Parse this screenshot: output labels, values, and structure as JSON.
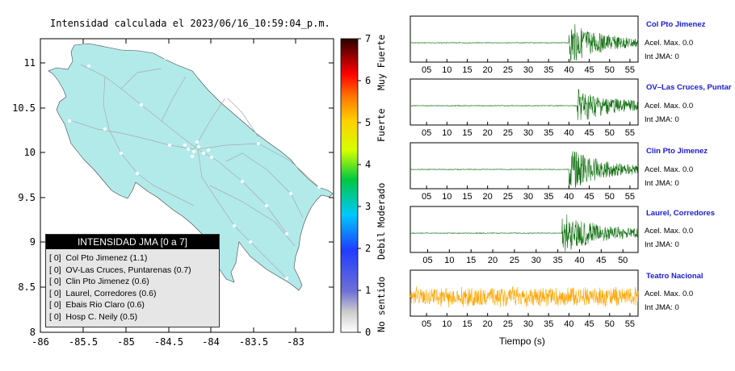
{
  "map": {
    "title": "Intensidad calculada el 2023/06/16_10:59:04_p.m.",
    "lat_ticks": [
      "11",
      "10.5",
      "10",
      "9.5",
      "9",
      "8.5",
      "8"
    ],
    "lon_ticks": [
      "-86",
      "-85.5",
      "-85",
      "-84.5",
      "-84",
      "-83.5",
      "-83"
    ],
    "land_color": "#b2eaea",
    "road_color": "#aaaaaa"
  },
  "colorbar": {
    "ticks": [
      "0",
      "1",
      "2",
      "3",
      "4",
      "5",
      "6",
      "7"
    ],
    "labels": [
      "No sentido",
      "Debil",
      "Moderado",
      "Fuerte",
      "Muy Fuerte"
    ]
  },
  "legend": {
    "title": "INTENSIDAD JMA [0 a 7]",
    "rows": [
      "[ 0]  Col Pto Jimenez (1.1)",
      "[ 0]  OV-Las Cruces, Puntarenas (0.7)",
      "[ 0]  Clin Pto Jimenez (0.6)",
      "[ 0]  Laurel, Corredores (0.6)",
      "[ 0]  Ebais Rio Claro (0.6)",
      "[ 0]  Hosp C. Neily (0.5)"
    ]
  },
  "waveforms": {
    "xlabel": "Tiempo (s)",
    "stations": [
      {
        "name": "Col Pto Jimenez",
        "acel": "Acel. Max. 0.0",
        "jma": "Int JMA: 0",
        "color": "#0f6e0f",
        "ticks": [
          "05",
          "10",
          "15",
          "20",
          "25",
          "30",
          "35",
          "40",
          "45",
          "50",
          "55"
        ],
        "onset": 40
      },
      {
        "name": "OV–Las Cruces, Puntar",
        "acel": "Acel. Max. 0.0",
        "jma": "Int JMA: 0",
        "color": "#0f6e0f",
        "ticks": [
          "05",
          "10",
          "15",
          "20",
          "25",
          "30",
          "35",
          "40",
          "45",
          "50",
          "55"
        ],
        "onset": 42
      },
      {
        "name": "Clin Pto Jimenez",
        "acel": "Acel. Max. 0.0",
        "jma": "Int JMA: 0",
        "color": "#0f6e0f",
        "ticks": [
          "05",
          "10",
          "15",
          "20",
          "25",
          "30",
          "35",
          "40",
          "45",
          "50",
          "55"
        ],
        "onset": 40
      },
      {
        "name": "Laurel, Corredores",
        "acel": "Acel. Max. 0.0",
        "jma": "Int JMA: 0",
        "color": "#0f6e0f",
        "ticks": [
          "05",
          "10",
          "15",
          "20",
          "25",
          "30",
          "35",
          "40",
          "45",
          "50"
        ],
        "onset": 36
      },
      {
        "name": "Teatro Nacional",
        "acel": "Acel. Max. 0.0",
        "jma": "Int JMA: 0",
        "color": "#ffa500",
        "ticks": [
          "05",
          "10",
          "15",
          "20",
          "25",
          "30",
          "35",
          "40",
          "45",
          "50",
          "55"
        ],
        "onset": 0
      }
    ]
  }
}
